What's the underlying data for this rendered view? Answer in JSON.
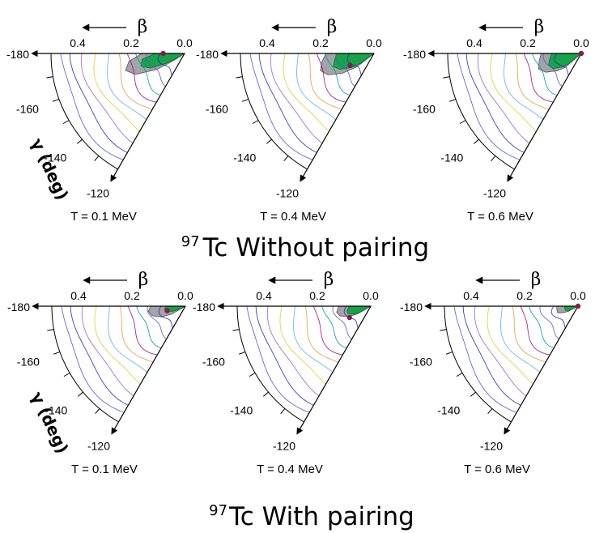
{
  "figure": {
    "section_top": {
      "isotope_mass": "97",
      "label": "Tc Without pairing"
    },
    "section_bottom": {
      "isotope_mass": "97",
      "label": "Tc With pairing"
    },
    "gamma_axis_label": "γ (deg)",
    "beta_axis_symbol": "β"
  },
  "colors": {
    "green_region": "#17a34a",
    "gray_region": "#a3a3a9",
    "marker": "#8b1a4a",
    "contours": [
      "#2a2ab0",
      "#5858d8",
      "#009a9a",
      "#a01080",
      "#e0a040",
      "#60b0f0",
      "#d8d030",
      "#a060c0"
    ]
  },
  "chart_data": [
    {
      "type": "polar-contour",
      "row": 0,
      "col": 0,
      "title": "T = 0.1 MeV",
      "beta_ticks": [
        "0.4",
        "0.2",
        "0.0"
      ],
      "gamma_ticks": [
        "-180",
        "-160",
        "-140",
        "-120"
      ],
      "beta_range": [
        0,
        0.5
      ],
      "gamma_range": [
        -180,
        -120
      ],
      "green_region_beta": [
        [
          -180,
          0.11
        ],
        [
          -172,
          0.16
        ],
        [
          -164,
          0.17
        ],
        [
          -157,
          0.14
        ],
        [
          -152,
          0.08
        ],
        [
          -150,
          0.03
        ]
      ],
      "gray_region_beta": [
        [
          -180,
          0.16
        ],
        [
          -172,
          0.21
        ],
        [
          -164,
          0.23
        ],
        [
          -157,
          0.2
        ],
        [
          -150,
          0.12
        ],
        [
          -147,
          0.05
        ]
      ],
      "minimum": {
        "beta": 0.08,
        "gamma": -180
      }
    },
    {
      "type": "polar-contour",
      "row": 0,
      "col": 1,
      "title": "T = 0.4 MeV",
      "beta_ticks": [
        "0.4",
        "0.2",
        "0.0"
      ],
      "gamma_ticks": [
        "-180",
        "-160",
        "-140",
        "-120"
      ],
      "beta_range": [
        0,
        0.5
      ],
      "gamma_range": [
        -180,
        -120
      ],
      "green_region_beta": [
        [
          -180,
          0.14
        ],
        [
          -170,
          0.15
        ],
        [
          -162,
          0.16
        ],
        [
          -155,
          0.14
        ],
        [
          -148,
          0.1
        ],
        [
          -144,
          0.06
        ]
      ],
      "gray_region_beta": [
        [
          -180,
          0.18
        ],
        [
          -170,
          0.2
        ],
        [
          -162,
          0.21
        ],
        [
          -155,
          0.19
        ],
        [
          -148,
          0.14
        ],
        [
          -142,
          0.08
        ]
      ],
      "minimum": {
        "beta": 0.1,
        "gamma": -154
      }
    },
    {
      "type": "polar-contour",
      "row": 0,
      "col": 2,
      "title": "T = 0.6 MeV",
      "beta_ticks": [
        "0.4",
        "0.2",
        "0.0"
      ],
      "gamma_ticks": [
        "-180",
        "-160",
        "-140",
        "-120"
      ],
      "beta_range": [
        0,
        0.5
      ],
      "gamma_range": [
        -180,
        -120
      ],
      "green_region_beta": [
        [
          -180,
          0.11
        ],
        [
          -170,
          0.12
        ],
        [
          -160,
          0.13
        ],
        [
          -152,
          0.12
        ],
        [
          -145,
          0.09
        ],
        [
          -140,
          0.06
        ]
      ],
      "gray_region_beta": [
        [
          -180,
          0.15
        ],
        [
          -170,
          0.16
        ],
        [
          -160,
          0.17
        ],
        [
          -152,
          0.15
        ],
        [
          -144,
          0.11
        ],
        [
          -139,
          0.08
        ]
      ],
      "minimum": {
        "beta": 0.0,
        "gamma": -180
      }
    },
    {
      "type": "polar-contour",
      "row": 1,
      "col": 0,
      "title": "T = 0.1 MeV",
      "beta_ticks": [
        "0.4",
        "0.2",
        "0.0"
      ],
      "gamma_ticks": [
        "-180",
        "-160",
        "-140",
        "-120"
      ],
      "beta_range": [
        0,
        0.5
      ],
      "gamma_range": [
        -180,
        -120
      ],
      "green_region_beta": [
        [
          -180,
          0.07
        ],
        [
          -172,
          0.08
        ],
        [
          -164,
          0.07
        ],
        [
          -158,
          0.05
        ],
        [
          -154,
          0.03
        ]
      ],
      "gray_region_beta": [
        [
          -180,
          0.13
        ],
        [
          -172,
          0.14
        ],
        [
          -164,
          0.13
        ],
        [
          -156,
          0.1
        ],
        [
          -150,
          0.06
        ]
      ],
      "minimum": {
        "beta": 0.07,
        "gamma": -166
      }
    },
    {
      "type": "polar-contour",
      "row": 1,
      "col": 1,
      "title": "T = 0.4 MeV",
      "beta_ticks": [
        "0.4",
        "0.2",
        "0.0"
      ],
      "gamma_ticks": [
        "-180",
        "-160",
        "-140",
        "-120"
      ],
      "beta_range": [
        0,
        0.5
      ],
      "gamma_range": [
        -180,
        -120
      ],
      "green_region_beta": [
        [
          -180,
          0.08
        ],
        [
          -170,
          0.09
        ],
        [
          -162,
          0.09
        ],
        [
          -155,
          0.07
        ],
        [
          -150,
          0.04
        ]
      ],
      "gray_region_beta": [
        [
          -180,
          0.12
        ],
        [
          -170,
          0.13
        ],
        [
          -162,
          0.12
        ],
        [
          -155,
          0.09
        ],
        [
          -150,
          0.06
        ]
      ],
      "minimum": {
        "beta": 0.09,
        "gamma": -152
      }
    },
    {
      "type": "polar-contour",
      "row": 1,
      "col": 2,
      "title": "T = 0.6 MeV",
      "beta_ticks": [
        "0.4",
        "0.2",
        "0.0"
      ],
      "gamma_ticks": [
        "-180",
        "-160",
        "-140",
        "-120"
      ],
      "beta_range": [
        0,
        0.5
      ],
      "gamma_range": [
        -180,
        -120
      ],
      "green_region_beta": [
        [
          -180,
          0.05
        ],
        [
          -170,
          0.05
        ],
        [
          -162,
          0.05
        ],
        [
          -156,
          0.04
        ],
        [
          -152,
          0.02
        ]
      ],
      "gray_region_beta": [
        [
          -180,
          0.08
        ],
        [
          -170,
          0.08
        ],
        [
          -162,
          0.08
        ],
        [
          -156,
          0.06
        ],
        [
          -152,
          0.04
        ]
      ],
      "minimum": {
        "beta": 0.0,
        "gamma": -180
      }
    }
  ]
}
